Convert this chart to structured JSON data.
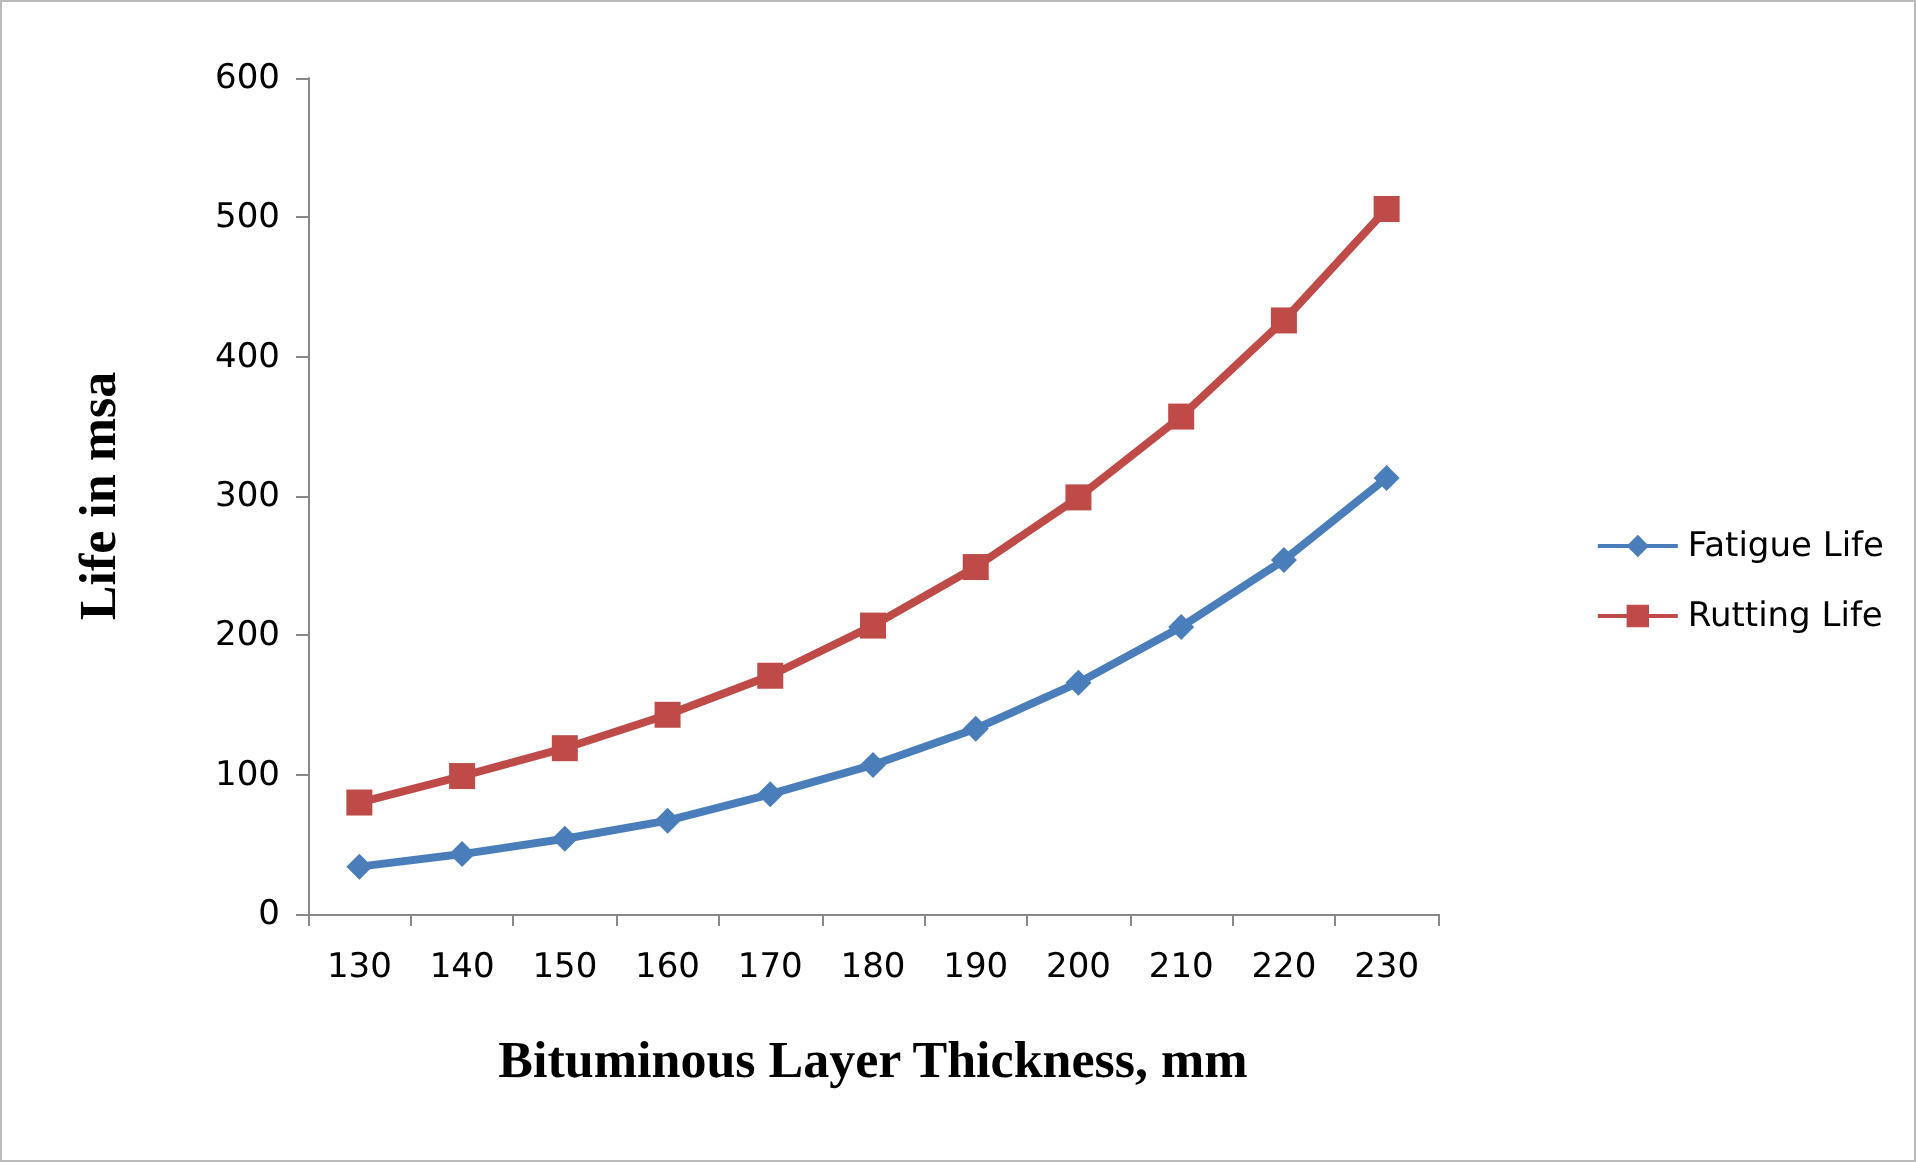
{
  "chart_data": {
    "type": "line",
    "xlabel": "Bituminous Layer Thickness, mm",
    "ylabel": "Life in msa",
    "categories": [
      "130",
      "140",
      "150",
      "160",
      "170",
      "180",
      "190",
      "200",
      "210",
      "220",
      "230"
    ],
    "series": [
      {
        "name": "Fatigue Life",
        "color": "#4a7ebb",
        "marker": "diamond",
        "values": [
          34,
          43,
          54,
          67,
          86,
          107,
          133,
          166,
          206,
          254,
          313
        ]
      },
      {
        "name": "Rutting Life",
        "color": "#be4b48",
        "marker": "square",
        "values": [
          80,
          99,
          119,
          143,
          171,
          207,
          249,
          299,
          357,
          426,
          506
        ]
      }
    ],
    "ylim": [
      0,
      600
    ],
    "yticks": [
      0,
      100,
      200,
      300,
      400,
      500,
      600
    ],
    "grid": false,
    "legend": "right",
    "line_style": "solid"
  }
}
